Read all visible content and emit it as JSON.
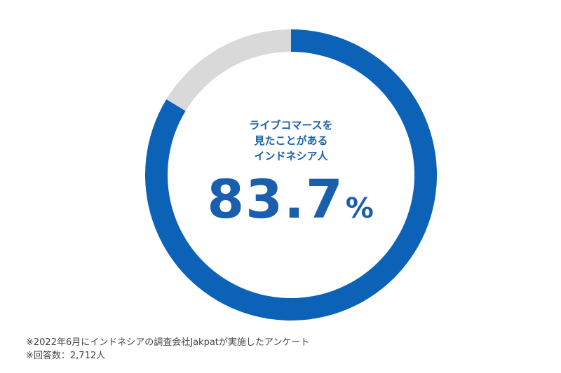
{
  "chart_data": {
    "type": "pie",
    "variant": "donut",
    "slices": [
      {
        "label": "",
        "value": 83.7,
        "color": "#0b62b6"
      },
      {
        "label": "",
        "value": 16.3,
        "color": "#d9d9d9"
      }
    ],
    "center_label_lines": [
      "ライブコマースを",
      "見たことがある",
      "インドネシア人"
    ],
    "center_value": "83.7",
    "center_unit": "%"
  },
  "notes": [
    "※2022年6月にインドネシアの調査会社Jakpatが実施したアンケート",
    "※回答数：2,712人"
  ]
}
